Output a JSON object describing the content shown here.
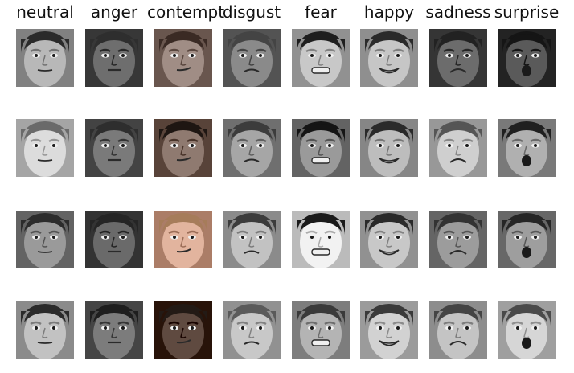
{
  "columns": [
    {
      "label": "neutral"
    },
    {
      "label": "anger"
    },
    {
      "label": "contempt"
    },
    {
      "label": "disgust"
    },
    {
      "label": "fear"
    },
    {
      "label": "happy"
    },
    {
      "label": "sadness"
    },
    {
      "label": "surprise"
    }
  ],
  "grid": {
    "rows": 4,
    "cols": 8
  },
  "faces": [
    [
      {
        "tone": "#b8b8b8",
        "hair": "#2a2a2a",
        "mouth": "neutral"
      },
      {
        "tone": "#6e6e6e",
        "hair": "#2e2e2e",
        "mouth": "tight"
      },
      {
        "tone": "#a08d85",
        "hair": "#3a2a24",
        "mouth": "smirk"
      },
      {
        "tone": "#8a8a8a",
        "hair": "#444444",
        "mouth": "frown"
      },
      {
        "tone": "#c8c8c8",
        "hair": "#1e1e1e",
        "mouth": "grimace"
      },
      {
        "tone": "#c6c6c6",
        "hair": "#2a2a2a",
        "mouth": "smile"
      },
      {
        "tone": "#6c6c6c",
        "hair": "#222222",
        "mouth": "sad"
      },
      {
        "tone": "#5a5a5a",
        "hair": "#151515",
        "mouth": "open"
      }
    ],
    [
      {
        "tone": "#dcdcdc",
        "hair": "#6a6a6a",
        "mouth": "neutral"
      },
      {
        "tone": "#7a7a7a",
        "hair": "#2e2e2e",
        "mouth": "tight"
      },
      {
        "tone": "#8f7a70",
        "hair": "#1e1612",
        "mouth": "smirk"
      },
      {
        "tone": "#a6a6a6",
        "hair": "#3c3c3c",
        "mouth": "frown"
      },
      {
        "tone": "#9a9a9a",
        "hair": "#151515",
        "mouth": "grimace"
      },
      {
        "tone": "#bdbdbd",
        "hair": "#2a2a2a",
        "mouth": "smile"
      },
      {
        "tone": "#cfcfcf",
        "hair": "#555555",
        "mouth": "sad"
      },
      {
        "tone": "#b0b0b0",
        "hair": "#202020",
        "mouth": "open"
      }
    ],
    [
      {
        "tone": "#9a9a9a",
        "hair": "#2c2c2c",
        "mouth": "neutral"
      },
      {
        "tone": "#6a6a6a",
        "hair": "#252525",
        "mouth": "tight"
      },
      {
        "tone": "#e2b49e",
        "hair": "#a67c5a",
        "mouth": "smirk"
      },
      {
        "tone": "#c2c2c2",
        "hair": "#3c3c3c",
        "mouth": "frown"
      },
      {
        "tone": "#f2f2f2",
        "hair": "#1a1a1a",
        "mouth": "grimace"
      },
      {
        "tone": "#c8c8c8",
        "hair": "#2a2a2a",
        "mouth": "smile"
      },
      {
        "tone": "#9c9c9c",
        "hair": "#333333",
        "mouth": "sad"
      },
      {
        "tone": "#9e9e9e",
        "hair": "#262626",
        "mouth": "open"
      }
    ],
    [
      {
        "tone": "#c2c2c2",
        "hair": "#2a2a2a",
        "mouth": "neutral"
      },
      {
        "tone": "#7c7c7c",
        "hair": "#1e1e1e",
        "mouth": "tight"
      },
      {
        "tone": "#5f4a40",
        "hair": "#231a15",
        "mouth": "smirk"
      },
      {
        "tone": "#c8c8c8",
        "hair": "#5a5a5a",
        "mouth": "frown"
      },
      {
        "tone": "#b4b4b4",
        "hair": "#3a3a3a",
        "mouth": "grimace"
      },
      {
        "tone": "#d2d2d2",
        "hair": "#3a3a3a",
        "mouth": "smile"
      },
      {
        "tone": "#c4c4c4",
        "hair": "#444444",
        "mouth": "sad"
      },
      {
        "tone": "#d6d6d6",
        "hair": "#4a4a4a",
        "mouth": "open"
      }
    ]
  ]
}
